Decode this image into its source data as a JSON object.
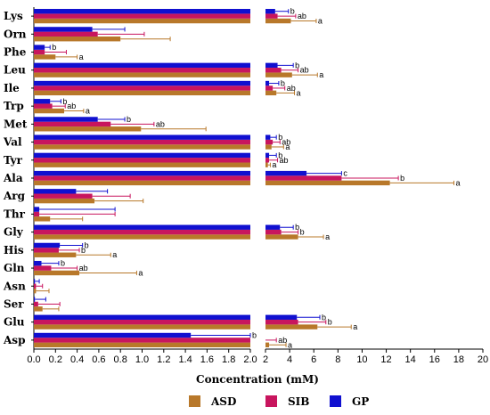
{
  "chart_data": {
    "type": "bar",
    "orientation": "horizontal",
    "title": "",
    "xlabel": "Concentration (mM)",
    "ylabel": "",
    "axis_break": {
      "left_range": [
        0,
        2.0
      ],
      "right_range": [
        2,
        20
      ]
    },
    "left_ticks": [
      "0.0",
      "0.2",
      "0.4",
      "0.6",
      "0.8",
      "1.0",
      "1.2",
      "1.4",
      "1.6",
      "1.8",
      "2.0"
    ],
    "right_ticks": [
      "2",
      "4",
      "6",
      "8",
      "10",
      "12",
      "14",
      "16",
      "18",
      "20"
    ],
    "categories": [
      "Lys",
      "Orn",
      "Phe",
      "Leu",
      "Ile",
      "Trp",
      "Met",
      "Val",
      "Tyr",
      "Ala",
      "Arg",
      "Thr",
      "Gly",
      "His",
      "Gln",
      "Asn",
      "Ser",
      "Glu",
      "Asp"
    ],
    "series": [
      {
        "name": "ASD",
        "color": "#b8782a",
        "values": [
          4.1,
          0.8,
          0.2,
          4.2,
          2.9,
          0.28,
          0.99,
          2.5,
          2.2,
          12.3,
          0.56,
          0.15,
          4.7,
          0.39,
          0.42,
          0.02,
          0.08,
          6.3,
          2.3
        ],
        "errors": [
          2.1,
          0.46,
          0.2,
          2.1,
          1.5,
          0.18,
          0.6,
          1.0,
          0.2,
          5.3,
          0.45,
          0.3,
          2.1,
          0.32,
          0.53,
          0.12,
          0.15,
          2.8,
          1.4
        ],
        "labels": [
          "a",
          "",
          "a",
          "a",
          "a",
          "a",
          "",
          "a",
          "a",
          "a",
          "",
          "",
          "a",
          "a",
          "a",
          "",
          "",
          "a",
          "a"
        ]
      },
      {
        "name": "SIB",
        "color": "#c8155e",
        "values": [
          3.0,
          0.59,
          0.1,
          3.3,
          2.6,
          0.17,
          0.71,
          2.6,
          2.3,
          8.3,
          0.54,
          0.05,
          3.3,
          0.23,
          0.16,
          0.02,
          0.04,
          4.7,
          2.0
        ],
        "errors": [
          1.5,
          0.43,
          0.2,
          1.4,
          1.0,
          0.12,
          0.4,
          0.6,
          0.7,
          4.7,
          0.35,
          0.7,
          1.4,
          0.19,
          0.24,
          0.06,
          0.2,
          2.3,
          0.9
        ],
        "labels": [
          "ab",
          "",
          "",
          "ab",
          "ab",
          "ab",
          "ab",
          "ab",
          "ab",
          "b",
          "",
          "",
          "b",
          "b",
          "ab",
          "",
          "",
          "b",
          "ab"
        ]
      },
      {
        "name": "GP",
        "color": "#1010d0",
        "values": [
          2.8,
          0.54,
          0.1,
          3.0,
          2.3,
          0.15,
          0.59,
          2.4,
          2.3,
          5.4,
          0.39,
          0.05,
          3.2,
          0.24,
          0.07,
          0.01,
          0.01,
          4.6,
          1.45
        ],
        "errors": [
          1.1,
          0.3,
          0.05,
          1.3,
          0.8,
          0.1,
          0.25,
          0.5,
          0.6,
          2.9,
          0.29,
          0.7,
          1.1,
          0.21,
          0.16,
          0.04,
          0.1,
          1.9,
          0.55
        ],
        "labels": [
          "b",
          "",
          "b",
          "b",
          "b",
          "b",
          "b",
          "b",
          "b",
          "c",
          "",
          "",
          "b",
          "b",
          "b",
          "",
          "",
          "b",
          "b"
        ]
      }
    ],
    "legend_position": "bottom",
    "grid": false
  }
}
